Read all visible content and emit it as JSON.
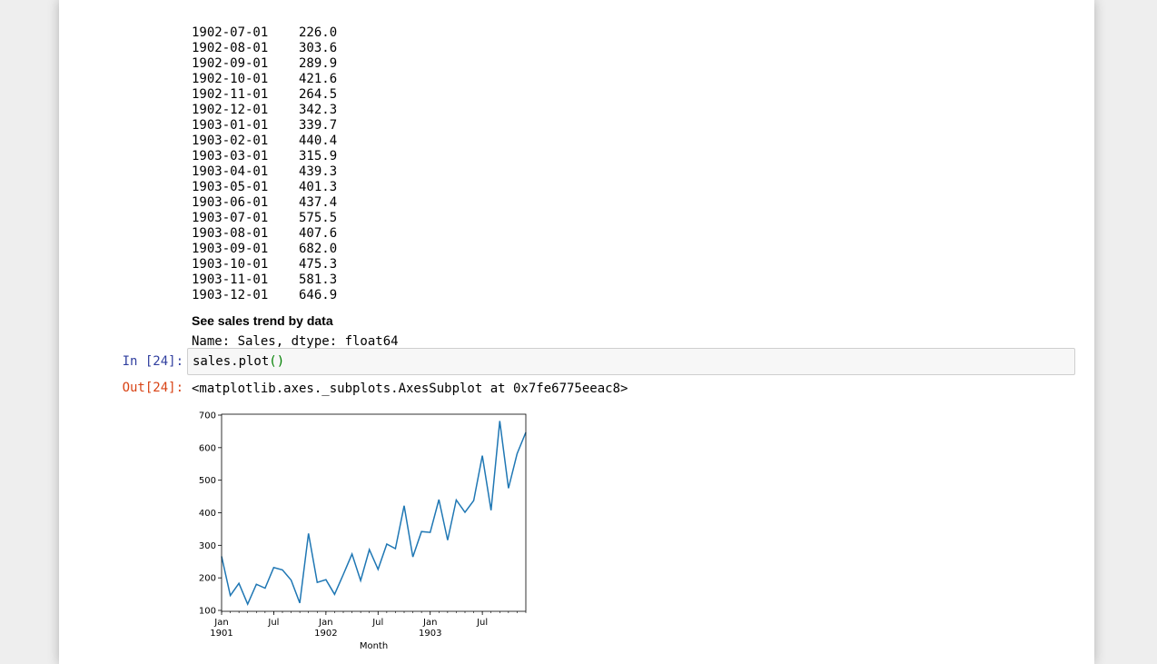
{
  "series_output": {
    "rows": [
      {
        "date": "1902-07-01",
        "value": "226.0"
      },
      {
        "date": "1902-08-01",
        "value": "303.6"
      },
      {
        "date": "1902-09-01",
        "value": "289.9"
      },
      {
        "date": "1902-10-01",
        "value": "421.6"
      },
      {
        "date": "1902-11-01",
        "value": "264.5"
      },
      {
        "date": "1902-12-01",
        "value": "342.3"
      },
      {
        "date": "1903-01-01",
        "value": "339.7"
      },
      {
        "date": "1903-02-01",
        "value": "440.4"
      },
      {
        "date": "1903-03-01",
        "value": "315.9"
      },
      {
        "date": "1903-04-01",
        "value": "439.3"
      },
      {
        "date": "1903-05-01",
        "value": "401.3"
      },
      {
        "date": "1903-06-01",
        "value": "437.4"
      },
      {
        "date": "1903-07-01",
        "value": "575.5"
      },
      {
        "date": "1903-08-01",
        "value": "407.6"
      },
      {
        "date": "1903-09-01",
        "value": "682.0"
      },
      {
        "date": "1903-10-01",
        "value": "475.3"
      },
      {
        "date": "1903-11-01",
        "value": "581.3"
      },
      {
        "date": "1903-12-01",
        "value": "646.9"
      }
    ],
    "footer": "Name: Sales, dtype: float64"
  },
  "markdown": {
    "heading": "See sales trend by data"
  },
  "cell": {
    "in_prompt": "In [24]:",
    "code_name": "sales.plot",
    "code_parens": "()",
    "out_prompt": "Out[24]:",
    "out_text": "<matplotlib.axes._subplots.AxesSubplot at 0x7fe6775eeac8>"
  },
  "colors": {
    "line": "#1f77b4",
    "in_prompt": "#303f9f",
    "out_prompt": "#d84315"
  },
  "chart_data": {
    "type": "line",
    "xlabel": "Month",
    "ylabel": "",
    "ylim": [
      100,
      700
    ],
    "yticks": [
      100,
      200,
      300,
      400,
      500,
      600,
      700
    ],
    "xticks": [
      {
        "month_index": 0,
        "label": "Jan",
        "sublabel": "1901"
      },
      {
        "month_index": 6,
        "label": "Jul",
        "sublabel": ""
      },
      {
        "month_index": 12,
        "label": "Jan",
        "sublabel": "1902"
      },
      {
        "month_index": 18,
        "label": "Jul",
        "sublabel": ""
      },
      {
        "month_index": 24,
        "label": "Jan",
        "sublabel": "1903"
      },
      {
        "month_index": 30,
        "label": "Jul",
        "sublabel": ""
      }
    ],
    "x": [
      "1901-01",
      "1901-02",
      "1901-03",
      "1901-04",
      "1901-05",
      "1901-06",
      "1901-07",
      "1901-08",
      "1901-09",
      "1901-10",
      "1901-11",
      "1901-12",
      "1902-01",
      "1902-02",
      "1902-03",
      "1902-04",
      "1902-05",
      "1902-06",
      "1902-07",
      "1902-08",
      "1902-09",
      "1902-10",
      "1902-11",
      "1902-12",
      "1903-01",
      "1903-02",
      "1903-03",
      "1903-04",
      "1903-05",
      "1903-06",
      "1903-07",
      "1903-08",
      "1903-09",
      "1903-10",
      "1903-11",
      "1903-12"
    ],
    "series": [
      {
        "values": [
          266.0,
          145.9,
          183.1,
          119.3,
          180.3,
          168.5,
          231.8,
          224.5,
          192.8,
          122.9,
          336.5,
          185.9,
          194.3,
          149.5,
          210.1,
          273.3,
          191.4,
          287.0,
          226.0,
          303.6,
          289.9,
          421.6,
          264.5,
          342.3,
          339.7,
          440.4,
          315.9,
          439.3,
          401.3,
          437.4,
          575.5,
          407.6,
          682.0,
          475.3,
          581.3,
          646.9
        ]
      }
    ]
  }
}
